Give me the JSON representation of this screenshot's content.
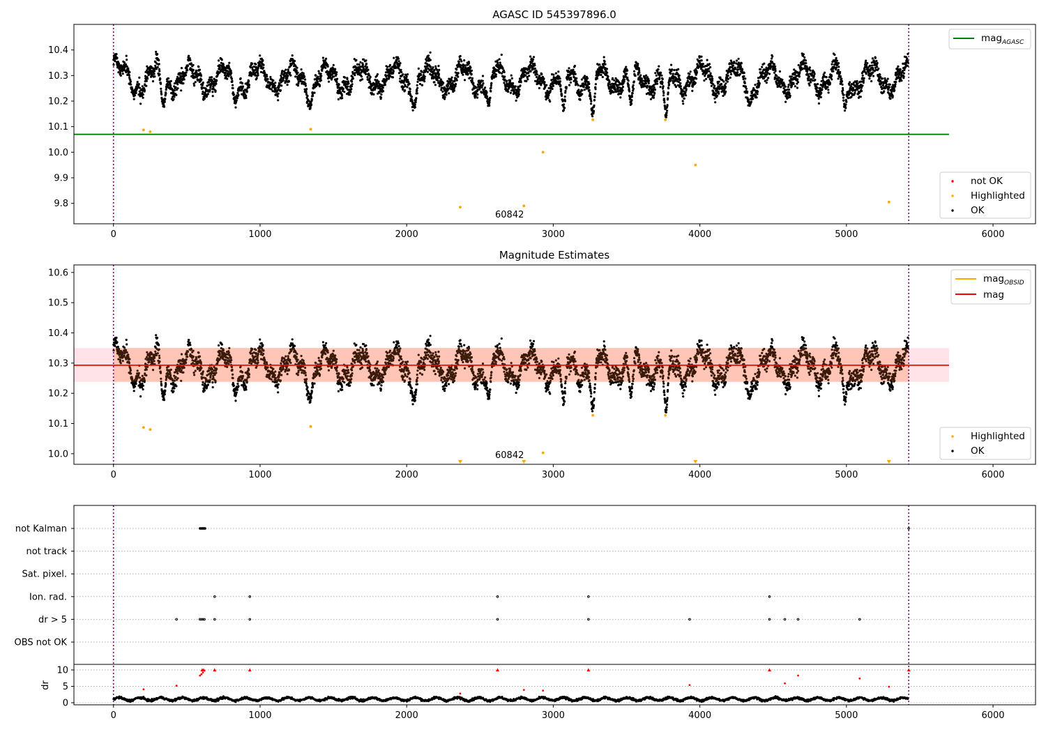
{
  "chart_data": [
    {
      "type": "scatter",
      "title": "AGASC ID 545397896.0",
      "xlim": [
        -270,
        6290
      ],
      "ylim": [
        9.72,
        10.5
      ],
      "x_ticks": [
        0,
        1000,
        2000,
        3000,
        4000,
        5000,
        6000
      ],
      "y_ticks": [
        9.8,
        9.9,
        10.0,
        10.1,
        10.2,
        10.3,
        10.4
      ],
      "vertical_lines": [
        0,
        5425
      ],
      "annotations": [
        {
          "text": "60842",
          "x": 2700,
          "y": 9.755
        }
      ],
      "reference_lines": [
        {
          "name": "mag",
          "subscript": "AGASC",
          "y": 10.07,
          "x_range": [
            -270,
            5700
          ],
          "color": "#008000"
        }
      ],
      "series": [
        {
          "name": "not OK",
          "color": "#ff0000",
          "points": []
        },
        {
          "name": "Highlighted",
          "color": "#ffa500",
          "points": [
            [
              205,
              10.087
            ],
            [
              250,
              10.08
            ],
            [
              1345,
              10.09
            ],
            [
              2365,
              9.785
            ],
            [
              2800,
              9.79
            ],
            [
              2930,
              10.0
            ],
            [
              3270,
              10.127
            ],
            [
              3765,
              10.127
            ],
            [
              3970,
              9.95
            ],
            [
              5290,
              9.805
            ]
          ]
        },
        {
          "name": "OK",
          "color": "#000000",
          "points": []
        }
      ],
      "ok_band": {
        "x_range": [
          0,
          5420
        ],
        "center": 10.29,
        "spread": 0.06,
        "dips": [
          [
            10,
            10.37
          ],
          [
            140,
            10.23
          ],
          [
            340,
            10.19
          ],
          [
            830,
            10.2
          ],
          [
            1340,
            10.18
          ],
          [
            2050,
            10.18
          ],
          [
            2560,
            10.19
          ],
          [
            3070,
            10.17
          ],
          [
            3270,
            10.15
          ],
          [
            3530,
            10.2
          ],
          [
            3770,
            10.15
          ],
          [
            4340,
            10.19
          ],
          [
            4990,
            10.18
          ]
        ]
      },
      "legend": {
        "upper": "top-right",
        "lower": "bottom-right"
      }
    },
    {
      "type": "scatter",
      "title": "Magnitude Estimates",
      "xlim": [
        -270,
        6290
      ],
      "ylim": [
        9.965,
        10.625
      ],
      "x_ticks": [
        0,
        1000,
        2000,
        3000,
        4000,
        5000,
        6000
      ],
      "y_ticks": [
        10.0,
        10.1,
        10.2,
        10.3,
        10.4,
        10.5,
        10.6
      ],
      "vertical_lines": [
        0,
        5425
      ],
      "annotations": [
        {
          "text": "60842",
          "x": 2700,
          "y": 9.99
        }
      ],
      "reference_lines": [
        {
          "name": "mag",
          "subscript": "OBSID",
          "y": 10.293,
          "x_range": [
            0,
            5425
          ],
          "color": "#ffa500"
        },
        {
          "name": "mag",
          "subscript": "",
          "y": 10.293,
          "x_range": [
            -270,
            5700
          ],
          "color": "#ff0000"
        }
      ],
      "bands": [
        {
          "color": "#ffa07a",
          "y_range": [
            10.238,
            10.35
          ],
          "x_range": [
            0,
            5425
          ]
        },
        {
          "color": "#ffc0cb",
          "y_range": [
            10.238,
            10.35
          ],
          "x_range": [
            -270,
            5700
          ]
        }
      ],
      "series": [
        {
          "name": "Highlighted",
          "color": "#ffa500",
          "points": [
            [
              205,
              10.087
            ],
            [
              250,
              10.08
            ],
            [
              1345,
              10.09
            ],
            [
              2930,
              10.003
            ],
            [
              3270,
              10.127
            ],
            [
              3765,
              10.127
            ]
          ],
          "clipped_below": [
            2365,
            2800,
            3970,
            5290
          ]
        },
        {
          "name": "OK",
          "color": "#000000",
          "points": []
        }
      ],
      "legend": {
        "upper": "top-right",
        "lower": "bottom-right"
      }
    },
    {
      "type": "scatter",
      "title": "",
      "xlim": [
        -270,
        6290
      ],
      "x_ticks": [
        0,
        1000,
        2000,
        3000,
        4000,
        5000,
        6000
      ],
      "vertical_lines": [
        0,
        5425
      ],
      "flag_rows": [
        "not Kalman",
        "not track",
        "Sat. pixel.",
        "Ion. rad.",
        "dr > 5",
        "OBS not OK"
      ],
      "flags": {
        "not Kalman": [
          590,
          595,
          600,
          605,
          610,
          615,
          620,
          625,
          5425
        ],
        "not track": [],
        "Sat. pixel.": [],
        "Ion. rad.": [
          690,
          930,
          2620,
          3240,
          4475
        ],
        "dr > 5": [
          430,
          590,
          600,
          610,
          620,
          690,
          930,
          2620,
          3240,
          3930,
          4475,
          4580,
          4670,
          5090
        ],
        "OBS not OK": []
      },
      "dr": {
        "ylabel": "dr",
        "ylim": [
          -0.5,
          10.5
        ],
        "y_ticks": [
          0,
          5,
          10
        ],
        "outliers": [
          [
            205,
            4.1
          ],
          [
            430,
            5.2
          ],
          [
            590,
            8.3
          ],
          [
            600,
            8.7
          ],
          [
            610,
            9.2
          ],
          [
            620,
            9.8
          ],
          [
            605,
            10
          ],
          [
            615,
            10
          ],
          [
            690,
            10
          ],
          [
            930,
            10
          ],
          [
            2365,
            2.8
          ],
          [
            2620,
            10
          ],
          [
            2800,
            3.9
          ],
          [
            2930,
            3.7
          ],
          [
            3240,
            10
          ],
          [
            3930,
            5.4
          ],
          [
            4475,
            10
          ],
          [
            4580,
            5.9
          ],
          [
            4670,
            8.3
          ],
          [
            5090,
            7.4
          ],
          [
            5290,
            4.9
          ],
          [
            5425,
            10
          ]
        ],
        "baseline": {
          "x_range": [
            0,
            5420
          ],
          "center": 1.1,
          "spread": 0.55
        }
      }
    }
  ]
}
